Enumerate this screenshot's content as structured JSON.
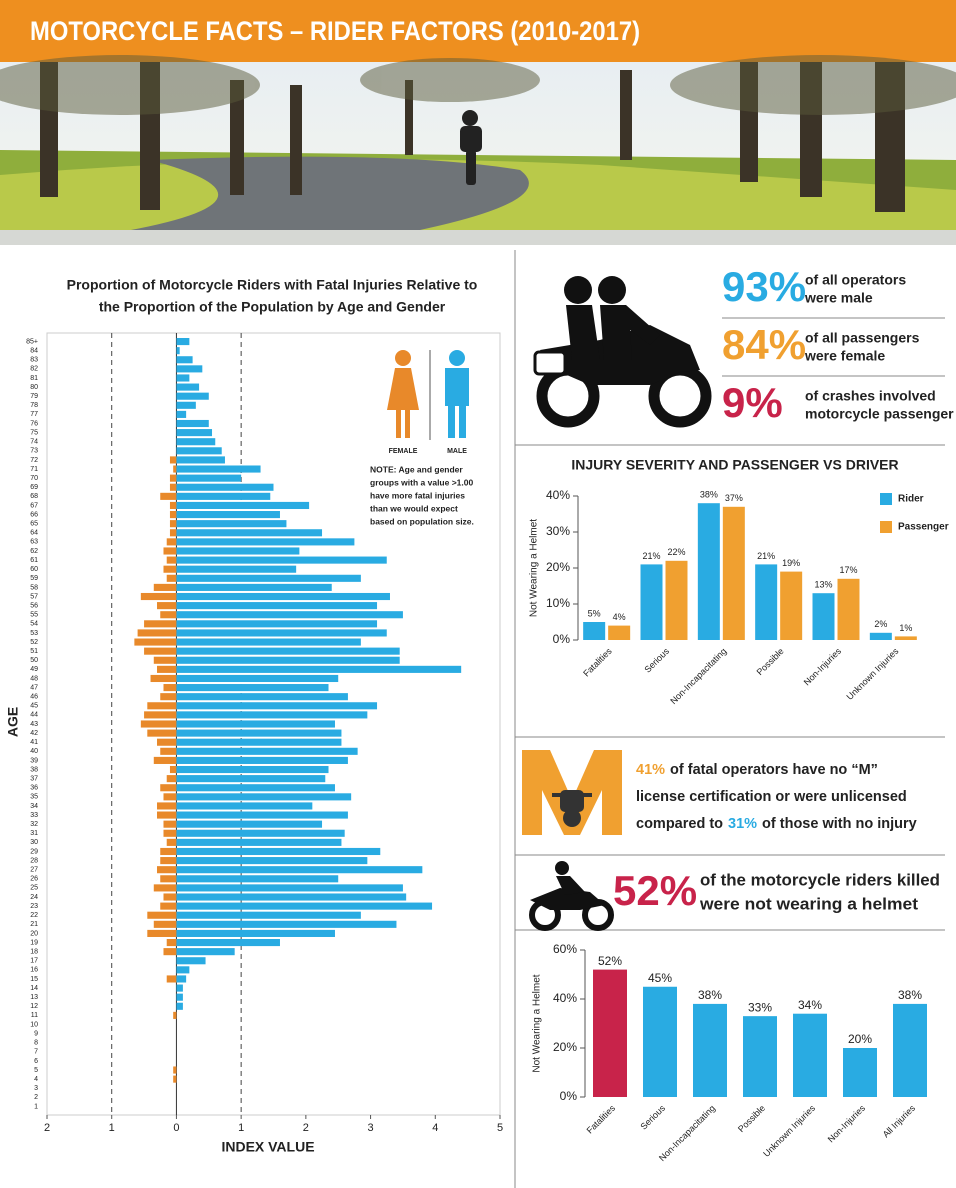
{
  "header": {
    "title": "MOTORCYCLE FACTS – RIDER FACTORS (2010-2017)"
  },
  "chart_data": [
    {
      "type": "bar",
      "orientation": "horizontal",
      "title": [
        "Proportion of Motorcycle Riders with Fatal Injuries Relative to",
        "the Proportion of the Population by Age and Gender"
      ],
      "x_label": "INDEX VALUE",
      "y_label": "AGE",
      "categories": [
        "85+",
        "84",
        "83",
        "82",
        "81",
        "80",
        "79",
        "78",
        "77",
        "76",
        "75",
        "74",
        "73",
        "72",
        "71",
        "70",
        "69",
        "68",
        "67",
        "66",
        "65",
        "64",
        "63",
        "62",
        "61",
        "60",
        "59",
        "58",
        "57",
        "56",
        "55",
        "54",
        "53",
        "52",
        "51",
        "50",
        "49",
        "48",
        "47",
        "46",
        "45",
        "44",
        "43",
        "42",
        "41",
        "40",
        "39",
        "38",
        "37",
        "36",
        "35",
        "34",
        "33",
        "32",
        "31",
        "30",
        "29",
        "28",
        "27",
        "26",
        "25",
        "24",
        "23",
        "22",
        "21",
        "20",
        "19",
        "18",
        "17",
        "16",
        "15",
        "14",
        "13",
        "12",
        "11",
        "10",
        "9",
        "8",
        "7",
        "6",
        "5",
        "4",
        "3",
        "2",
        "1"
      ],
      "series": [
        {
          "name": "FEMALE",
          "color": "#e8892a",
          "values": [
            0,
            0,
            0,
            0,
            0,
            0,
            0,
            0,
            0,
            0,
            0,
            0,
            0,
            -0.1,
            -0.05,
            -0.1,
            -0.1,
            -0.25,
            -0.1,
            -0.1,
            -0.1,
            -0.1,
            -0.15,
            -0.2,
            -0.15,
            -0.2,
            -0.15,
            -0.35,
            -0.55,
            -0.3,
            -0.25,
            -0.5,
            -0.6,
            -0.65,
            -0.5,
            -0.35,
            -0.3,
            -0.4,
            -0.2,
            -0.25,
            -0.45,
            -0.5,
            -0.55,
            -0.45,
            -0.3,
            -0.25,
            -0.35,
            -0.1,
            -0.15,
            -0.25,
            -0.2,
            -0.3,
            -0.3,
            -0.2,
            -0.2,
            -0.15,
            -0.25,
            -0.25,
            -0.3,
            -0.25,
            -0.35,
            -0.2,
            -0.25,
            -0.45,
            -0.35,
            -0.45,
            -0.15,
            -0.2,
            0,
            0,
            -0.15,
            0,
            0,
            0,
            -0.05,
            0,
            0,
            0,
            0,
            0,
            -0.05,
            -0.05,
            0,
            0,
            0
          ]
        },
        {
          "name": "MALE",
          "color": "#29abe2",
          "values": [
            0.2,
            0.05,
            0.25,
            0.4,
            0.2,
            0.35,
            0.5,
            0.3,
            0.15,
            0.5,
            0.55,
            0.6,
            0.7,
            0.75,
            1.3,
            1.0,
            1.5,
            1.45,
            2.05,
            1.6,
            1.7,
            2.25,
            2.75,
            1.9,
            3.25,
            1.85,
            2.85,
            2.4,
            3.3,
            3.1,
            3.5,
            3.1,
            3.25,
            2.85,
            3.45,
            3.45,
            4.4,
            2.5,
            2.35,
            2.65,
            3.1,
            2.95,
            2.45,
            2.55,
            2.55,
            2.8,
            2.65,
            2.35,
            2.3,
            2.45,
            2.7,
            2.1,
            2.65,
            2.25,
            2.6,
            2.55,
            3.15,
            2.95,
            3.8,
            2.5,
            3.5,
            3.55,
            3.95,
            2.85,
            3.4,
            2.45,
            1.6,
            0.9,
            0.45,
            0.2,
            0.15,
            0.1,
            0.1,
            0.1,
            0,
            0,
            0,
            0,
            0,
            0,
            0,
            0,
            0,
            0,
            0
          ]
        }
      ],
      "xlim": [
        -2,
        5
      ],
      "xticks": [
        {
          "value": -2,
          "label": "2"
        },
        {
          "value": -1,
          "label": "1"
        },
        0,
        1,
        2,
        3,
        4,
        5
      ],
      "reference_lines": [
        -1,
        1
      ],
      "note": [
        "NOTE: Age and gender",
        "groups with a value >1.00",
        "have more fatal injuries",
        "than we would expect",
        "based on population size."
      ]
    },
    {
      "type": "bar",
      "title": "INJURY SEVERITY AND PASSENGER VS DRIVER",
      "y_label": "Not Wearing a Helmet",
      "categories": [
        "Fatalities",
        "Serious",
        "Non-Incapacitating",
        "Possible",
        "Non-Injuries",
        "Unknown Injuries"
      ],
      "series": [
        {
          "name": "Rider",
          "color": "#29abe2",
          "values": [
            5,
            21,
            38,
            21,
            13,
            2
          ],
          "value_labels": [
            "5%",
            "21%",
            "38%",
            "21%",
            "13%",
            "2%"
          ]
        },
        {
          "name": "Passenger",
          "color": "#f0a030",
          "values": [
            4,
            22,
            37,
            19,
            17,
            1
          ],
          "value_labels": [
            "4%",
            "22%",
            "37%",
            "19%",
            "17%",
            "1%"
          ]
        }
      ],
      "ylim": [
        0,
        40
      ],
      "yticks": [
        {
          "value": 0,
          "label": "0%"
        },
        {
          "value": 10,
          "label": "10%"
        },
        {
          "value": 20,
          "label": "20%"
        },
        {
          "value": 30,
          "label": "30%"
        },
        {
          "value": 40,
          "label": "40%"
        }
      ]
    },
    {
      "type": "bar",
      "y_label": "Not Wearing a Helmet",
      "categories": [
        "Fatalities",
        "Serious",
        "Non-Incapacitating",
        "Possible",
        "Unknown Injuries",
        "Non-Injuries",
        "All Injuries"
      ],
      "values": [
        52,
        45,
        38,
        33,
        34,
        20,
        38
      ],
      "value_labels": [
        "52%",
        "45%",
        "38%",
        "33%",
        "34%",
        "20%",
        "38%"
      ],
      "colors": [
        "#c8234a",
        "#29abe2",
        "#29abe2",
        "#29abe2",
        "#29abe2",
        "#29abe2",
        "#29abe2"
      ],
      "ylim": [
        0,
        60
      ],
      "yticks": [
        {
          "value": 0,
          "label": "0%"
        },
        {
          "value": 20,
          "label": "20%"
        },
        {
          "value": 40,
          "label": "40%"
        },
        {
          "value": 60,
          "label": "60%"
        }
      ]
    }
  ],
  "stats": [
    {
      "value": "93%",
      "color": "#29abe2",
      "lines": [
        "of all operators",
        "were male"
      ]
    },
    {
      "value": "84%",
      "color": "#f0a030",
      "lines": [
        "of all passengers",
        "were female"
      ]
    },
    {
      "value": "9%",
      "color": "#c8234a",
      "lines": [
        "of crashes involved",
        "motorcycle passenger"
      ]
    }
  ],
  "license": {
    "lines": [
      [
        {
          "text": "41%",
          "highlight": "#f0a030"
        },
        {
          "text": "of fatal operators have no “M”"
        }
      ],
      [
        {
          "text": "license certification or were unlicensed"
        }
      ],
      [
        {
          "text": "compared to"
        },
        {
          "text": "31%",
          "highlight": "#29abe2"
        },
        {
          "text": "of those with no injury"
        }
      ]
    ]
  },
  "helmet_stat": {
    "value": "52%",
    "color": "#c8234a",
    "lines": [
      "of the motorcycle riders killed",
      "were not wearing a helmet"
    ]
  }
}
